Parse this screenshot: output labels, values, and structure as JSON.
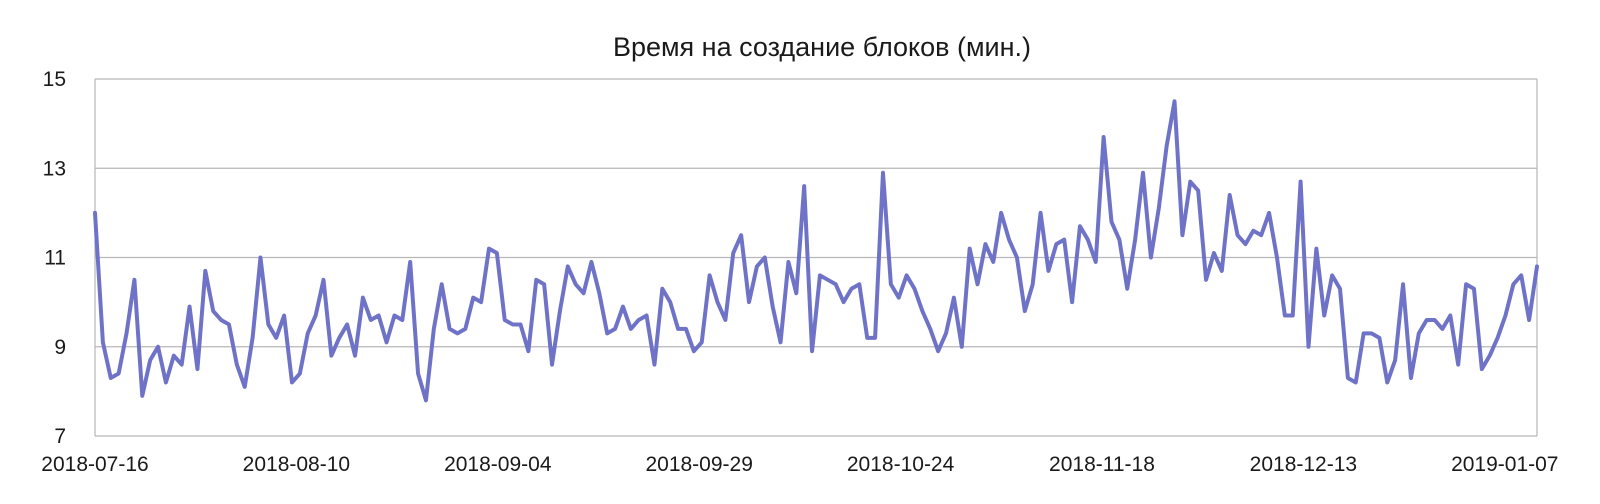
{
  "chart_data": {
    "type": "line",
    "title": "Время на создание блоков (мин.)",
    "xlabel": "",
    "ylabel": "",
    "ylim": [
      7,
      15
    ],
    "yticks": [
      7,
      9,
      11,
      13,
      15
    ],
    "xlim": [
      "2018-07-16",
      "2019-01-11"
    ],
    "xticks": [
      "2018-07-16",
      "2018-08-10",
      "2018-09-04",
      "2018-09-29",
      "2018-10-24",
      "2018-11-18",
      "2018-12-13",
      "2019-01-07"
    ],
    "grid": "horizontal",
    "legend": "none",
    "series_color": "#6f73c8",
    "series": [
      {
        "values": [
          12.0,
          9.1,
          8.3,
          8.4,
          9.3,
          10.5,
          7.9,
          8.7,
          9.0,
          8.2,
          8.8,
          8.6,
          9.9,
          8.5,
          10.7,
          9.8,
          9.6,
          9.5,
          8.6,
          8.1,
          9.2,
          11.0,
          9.5,
          9.2,
          9.7,
          8.2,
          8.4,
          9.3,
          9.7,
          10.5,
          8.8,
          9.2,
          9.5,
          8.8,
          10.1,
          9.6,
          9.7,
          9.1,
          9.7,
          9.6,
          10.9,
          8.4,
          7.8,
          9.4,
          10.4,
          9.4,
          9.3,
          9.4,
          10.1,
          10.0,
          11.2,
          11.1,
          9.6,
          9.5,
          9.5,
          8.9,
          10.5,
          10.4,
          8.6,
          9.8,
          10.8,
          10.4,
          10.2,
          10.9,
          10.2,
          9.3,
          9.4,
          9.9,
          9.4,
          9.6,
          9.7,
          8.6,
          10.3,
          10.0,
          9.4,
          9.4,
          8.9,
          9.1,
          10.6,
          10.0,
          9.6,
          11.1,
          11.5,
          10.0,
          10.8,
          11.0,
          9.9,
          9.1,
          10.9,
          10.2,
          12.6,
          8.9,
          10.6,
          10.5,
          10.4,
          10.0,
          10.3,
          10.4,
          9.2,
          9.2,
          12.9,
          10.4,
          10.1,
          10.6,
          10.3,
          9.8,
          9.4,
          8.9,
          9.3,
          10.1,
          9.0,
          11.2,
          10.4,
          11.3,
          10.9,
          12.0,
          11.4,
          11.0,
          9.8,
          10.4,
          12.0,
          10.7,
          11.3,
          11.4,
          10.0,
          11.7,
          11.4,
          10.9,
          13.7,
          11.8,
          11.4,
          10.3,
          11.4,
          12.9,
          11.0,
          12.1,
          13.5,
          14.5,
          11.5,
          12.7,
          12.5,
          10.5,
          11.1,
          10.7,
          12.4,
          11.5,
          11.3,
          11.6,
          11.5,
          12.0,
          11.0,
          9.7,
          9.7,
          12.7,
          9.0,
          11.2,
          9.7,
          10.6,
          10.3,
          8.3,
          8.2,
          9.3,
          9.3,
          9.2,
          8.2,
          8.7,
          10.4,
          8.3,
          9.3,
          9.6,
          9.6,
          9.4,
          9.7,
          8.6,
          10.4,
          10.3,
          8.5,
          8.8,
          9.2,
          9.7,
          10.4,
          10.6,
          9.6,
          10.8
        ]
      }
    ]
  }
}
